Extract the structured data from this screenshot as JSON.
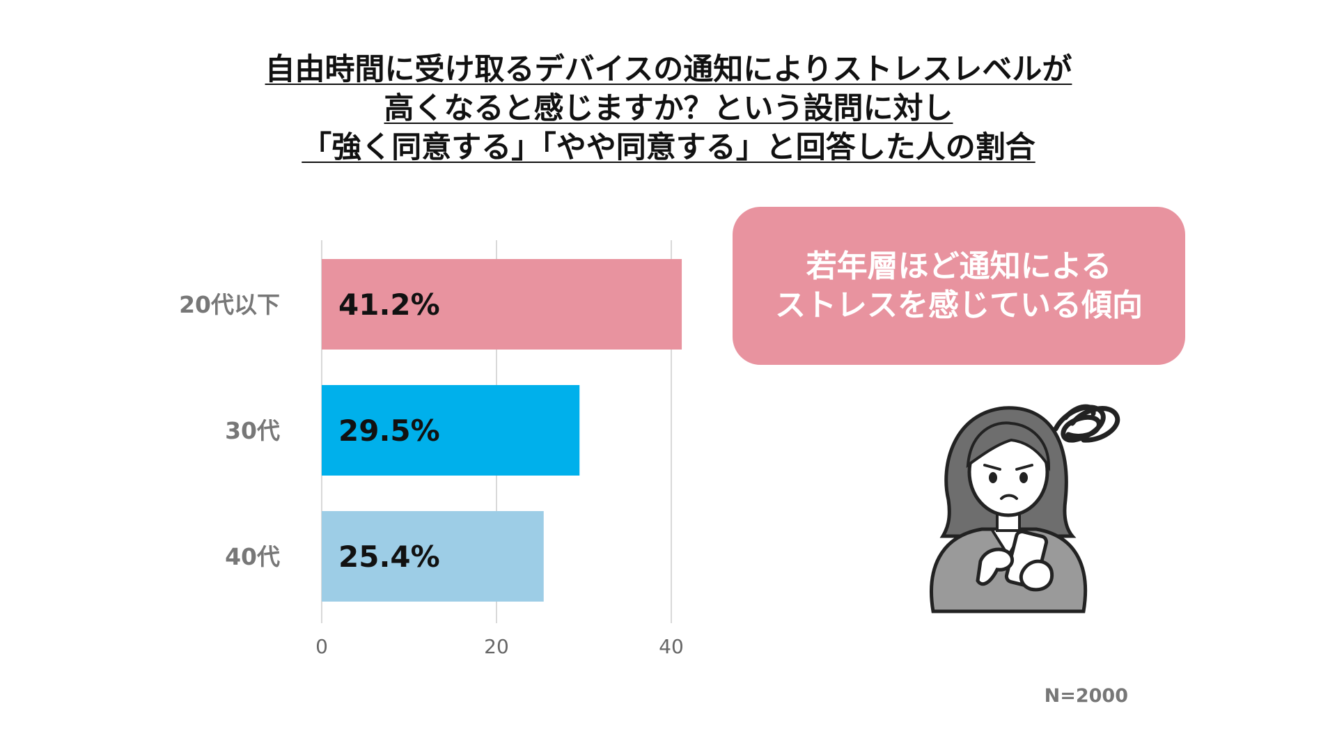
{
  "title_lines": [
    "自由時間に受け取るデバイスの通知によりストレスレベルが",
    "高くなると感じますか？という設問に対し",
    "「強く同意する」「やや同意する」と回答した人の割合"
  ],
  "callout": {
    "lines": [
      "若年層ほど通知による",
      "ストレスを感じている傾向"
    ],
    "color": "#e8939f"
  },
  "note": "N=2000",
  "chart_data": {
    "type": "bar",
    "orientation": "horizontal",
    "title": "",
    "xlabel": "",
    "ylabel": "",
    "categories": [
      "20代以下",
      "30代",
      "40代"
    ],
    "values": [
      41.2,
      29.5,
      25.4
    ],
    "data_labels": [
      "41.2%",
      "29.5%",
      "25.4%"
    ],
    "colors": [
      "#e8939f",
      "#00b0eb",
      "#9dcde6"
    ],
    "xlim": [
      0,
      40
    ],
    "x_ticks": [
      0,
      20,
      40
    ],
    "grid": true,
    "legend": "none"
  }
}
